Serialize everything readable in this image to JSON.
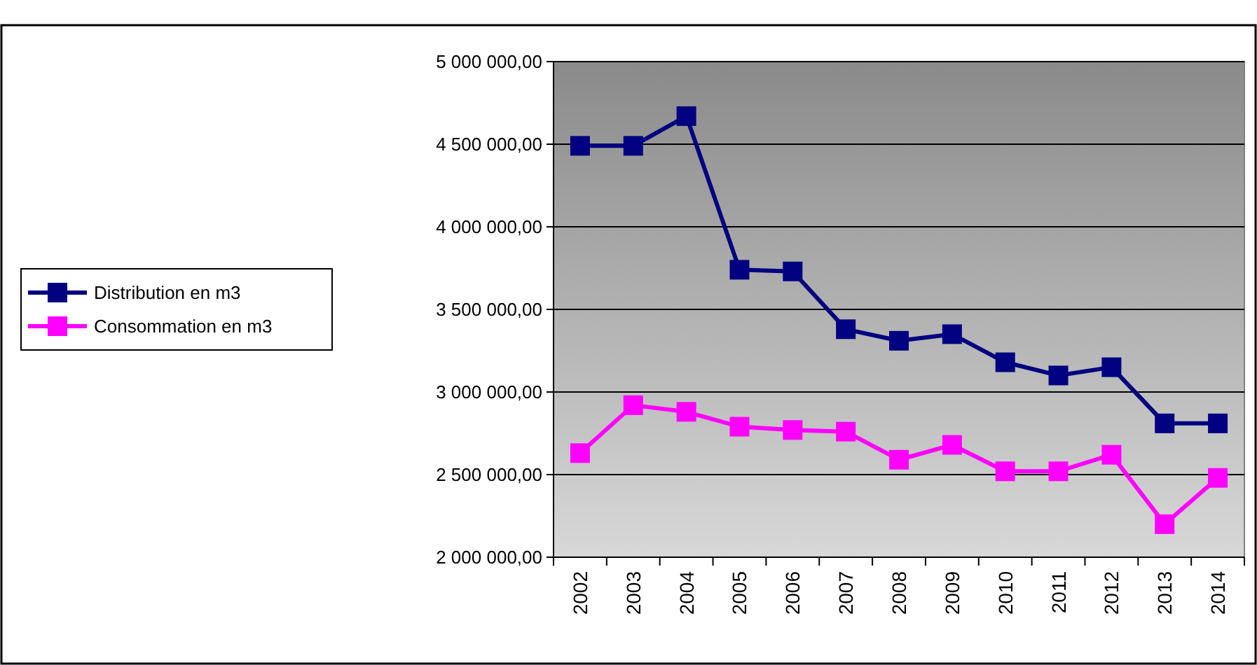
{
  "chart_data": {
    "type": "line",
    "categories": [
      "2002",
      "2003",
      "2004",
      "2005",
      "2006",
      "2007",
      "2008",
      "2009",
      "2010",
      "2011",
      "2012",
      "2013",
      "2014"
    ],
    "series": [
      {
        "name": "Distribution en m3",
        "color": "#000080",
        "values": [
          4490000,
          4490000,
          4670000,
          3740000,
          3730000,
          3380000,
          3310000,
          3350000,
          3180000,
          3100000,
          3150000,
          2810000,
          2810000
        ]
      },
      {
        "name": "Consommation en m3",
        "color": "#ff00ff",
        "values": [
          2630000,
          2920000,
          2880000,
          2790000,
          2770000,
          2760000,
          2590000,
          2680000,
          2520000,
          2520000,
          2620000,
          2200000,
          2480000
        ]
      }
    ],
    "ylim": [
      2000000,
      5000000
    ],
    "yticks": [
      {
        "value": 2000000,
        "label": "2 000 000,00"
      },
      {
        "value": 2500000,
        "label": "2 500 000,00"
      },
      {
        "value": 3000000,
        "label": "3 000 000,00"
      },
      {
        "value": 3500000,
        "label": "3 500 000,00"
      },
      {
        "value": 4000000,
        "label": "4 000 000,00"
      },
      {
        "value": 4500000,
        "label": "4 500 000,00"
      },
      {
        "value": 5000000,
        "label": "5 000 000,00"
      }
    ],
    "grid": "y",
    "legend": "left",
    "marker": "square",
    "line_style": "solid"
  }
}
